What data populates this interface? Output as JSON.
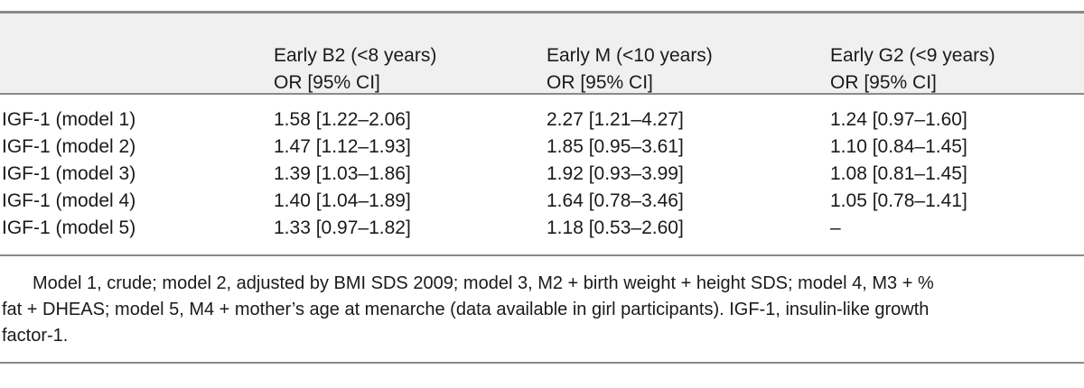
{
  "table": {
    "headers": [
      {
        "line1": "",
        "line2": ""
      },
      {
        "line1": "Early B2 (<8 years)",
        "line2": "OR [95% CI]"
      },
      {
        "line1": "Early M (<10 years)",
        "line2": "OR [95% CI]"
      },
      {
        "line1": "Early G2 (<9 years)",
        "line2": "OR [95% CI]"
      }
    ],
    "rows": [
      [
        "IGF-1 (model 1)",
        "1.58 [1.22–2.06]",
        "2.27 [1.21–4.27]",
        "1.24 [0.97–1.60]"
      ],
      [
        "IGF-1 (model 2)",
        "1.47 [1.12–1.93]",
        "1.85 [0.95–3.61]",
        "1.10 [0.84–1.45]"
      ],
      [
        "IGF-1 (model 3)",
        "1.39 [1.03–1.86]",
        "1.92 [0.93–3.99]",
        "1.08 [0.81–1.45]"
      ],
      [
        "IGF-1 (model 4)",
        "1.40 [1.04–1.89]",
        "1.64 [0.78–3.46]",
        "1.05 [0.78–1.41]"
      ],
      [
        "IGF-1 (model 5)",
        "1.33 [0.97–1.82]",
        "1.18 [0.53–2.60]",
        "–"
      ]
    ]
  },
  "footnote": {
    "lines": [
      "Model 1, crude; model 2, adjusted by BMI SDS 2009; model 3, M2 + birth weight + height SDS; model 4, M3 + %",
      "fat + DHEAS; model 5, M4 + mother’s age at menarche (data available in girl participants). IGF-1, insulin-like growth",
      "factor-1."
    ]
  }
}
